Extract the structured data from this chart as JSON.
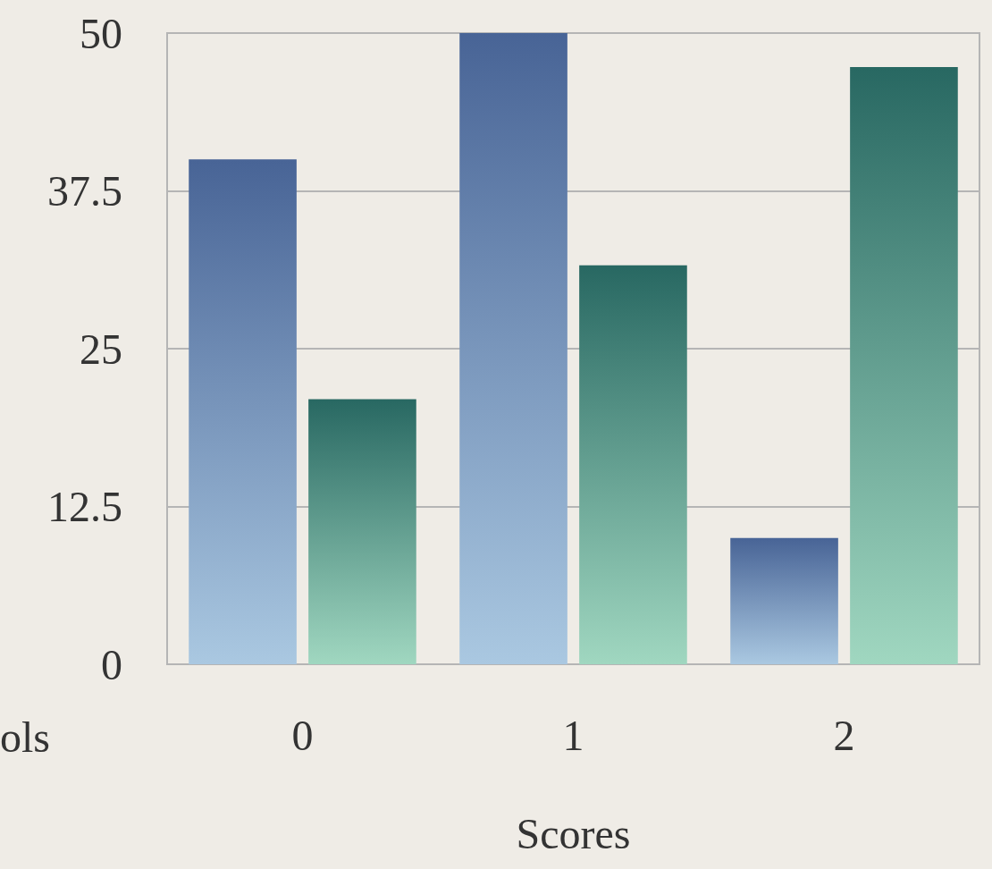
{
  "chart_data": {
    "type": "bar",
    "xlabel": "Scores",
    "annotations": [
      "ols"
    ],
    "categories": [
      "0",
      "1",
      "2"
    ],
    "series": [
      {
        "color": "#486496",
        "values": [
          40,
          50,
          10
        ]
      },
      {
        "color": "#286862",
        "values": [
          21,
          31.6,
          47.3
        ]
      }
    ],
    "ylim": [
      0,
      50
    ],
    "yticks": [
      0,
      12.5,
      25,
      37.5,
      50
    ],
    "grid": "y"
  }
}
